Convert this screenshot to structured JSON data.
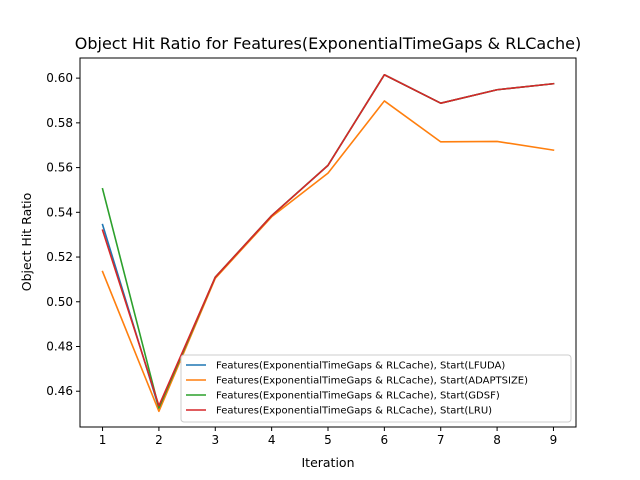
{
  "chart_data": {
    "type": "line",
    "title": "Object Hit Ratio for Features(ExponentialTimeGaps & RLCache)",
    "xlabel": "Iteration",
    "ylabel": "Object Hit Ratio",
    "xlim": [
      0.6,
      9.4
    ],
    "ylim": [
      0.444,
      0.609
    ],
    "x": [
      1,
      2,
      3,
      4,
      5,
      6,
      7,
      8,
      9
    ],
    "x_ticks": [
      "1",
      "2",
      "3",
      "4",
      "5",
      "6",
      "7",
      "8",
      "9"
    ],
    "y_ticks": [
      0.46,
      0.48,
      0.5,
      0.52,
      0.54,
      0.56,
      0.58,
      0.6
    ],
    "y_tick_labels": [
      "0.46",
      "0.48",
      "0.50",
      "0.52",
      "0.54",
      "0.56",
      "0.58",
      "0.60"
    ],
    "grid": false,
    "legend_position": "lower-right",
    "series": [
      {
        "name": "Features(ExponentialTimeGaps & RLCache), Start(LFUDA)",
        "color": "#1f77b4",
        "values": [
          0.5345,
          0.4525,
          0.511,
          0.5385,
          0.561,
          0.6015,
          0.5888,
          0.5948,
          0.5975
        ]
      },
      {
        "name": "Features(ExponentialTimeGaps & RLCache), Start(ADAPTSIZE)",
        "color": "#ff7f0e",
        "values": [
          0.5135,
          0.451,
          0.5105,
          0.538,
          0.5575,
          0.5898,
          0.5715,
          0.5717,
          0.5678
        ]
      },
      {
        "name": "Features(ExponentialTimeGaps & RLCache), Start(GDSF)",
        "color": "#2ca02c",
        "values": [
          0.5505,
          0.4525,
          0.511,
          0.5385,
          0.561,
          0.6015,
          0.5888,
          0.5948,
          0.5975
        ]
      },
      {
        "name": "Features(ExponentialTimeGaps & RLCache), Start(LRU)",
        "color": "#d62728",
        "values": [
          0.532,
          0.4535,
          0.511,
          0.5385,
          0.561,
          0.6015,
          0.5888,
          0.5948,
          0.5975
        ]
      }
    ]
  }
}
